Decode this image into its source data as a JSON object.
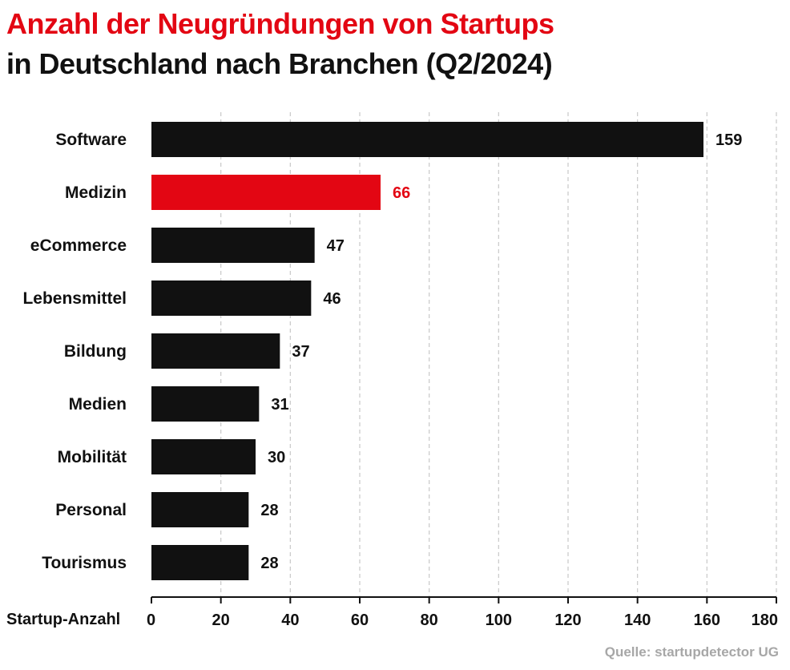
{
  "title_line1": "Anzahl der Neugründungen von Startups",
  "title_line2": "in Deutschland nach Branchen (Q2/2024)",
  "source": "Quelle: startupdetector UG",
  "colors": {
    "highlight": "#e30613",
    "bar": "#111111",
    "grid": "#c8c8c8",
    "title_accent": "#e30613"
  },
  "chart_data": {
    "type": "bar",
    "orientation": "horizontal",
    "categories": [
      "Software",
      "Medizin",
      "eCommerce",
      "Lebensmittel",
      "Bildung",
      "Medien",
      "Mobilität",
      "Personal",
      "Tourismus"
    ],
    "values": [
      159,
      66,
      47,
      46,
      37,
      31,
      30,
      28,
      28
    ],
    "highlight": [
      "Medizin"
    ],
    "xlabel": "Startup-Anzahl",
    "xlim": [
      0,
      180
    ],
    "xticks": [
      0,
      20,
      40,
      60,
      80,
      100,
      120,
      140,
      160,
      180
    ],
    "grid": "vertical dashed",
    "data_labels": true
  }
}
